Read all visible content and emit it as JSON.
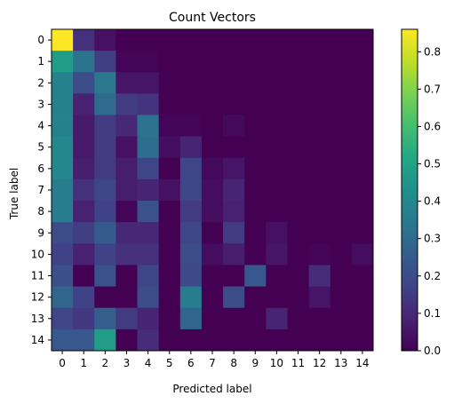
{
  "chart_data": {
    "type": "heatmap",
    "title": "Count Vectors",
    "xlabel": "Predicted label",
    "ylabel": "True label",
    "x_categories": [
      "0",
      "1",
      "2",
      "3",
      "4",
      "5",
      "6",
      "7",
      "8",
      "9",
      "10",
      "11",
      "12",
      "13",
      "14"
    ],
    "y_categories": [
      "0",
      "1",
      "2",
      "3",
      "4",
      "5",
      "6",
      "7",
      "8",
      "9",
      "10",
      "11",
      "12",
      "13",
      "14"
    ],
    "colormap": "viridis",
    "vmin": 0.0,
    "vmax": 0.86,
    "colorbar_ticks": [
      "0.0",
      "0.1",
      "0.2",
      "0.3",
      "0.4",
      "0.5",
      "0.6",
      "0.7",
      "0.8"
    ],
    "colorbar_tick_values": [
      0.0,
      0.1,
      0.2,
      0.3,
      0.4,
      0.5,
      0.6,
      0.7,
      0.8
    ],
    "values": [
      [
        0.86,
        0.12,
        0.04,
        0.0,
        0.0,
        0.0,
        0.0,
        0.0,
        0.0,
        0.0,
        0.0,
        0.0,
        0.0,
        0.0,
        0.0
      ],
      [
        0.48,
        0.33,
        0.16,
        0.01,
        0.01,
        0.0,
        0.0,
        0.0,
        0.0,
        0.0,
        0.0,
        0.0,
        0.0,
        0.0,
        0.0
      ],
      [
        0.38,
        0.2,
        0.34,
        0.05,
        0.05,
        0.0,
        0.0,
        0.0,
        0.0,
        0.0,
        0.0,
        0.0,
        0.0,
        0.0,
        0.0
      ],
      [
        0.38,
        0.08,
        0.3,
        0.15,
        0.13,
        0.0,
        0.0,
        0.0,
        0.0,
        0.0,
        0.0,
        0.0,
        0.0,
        0.0,
        0.0
      ],
      [
        0.38,
        0.06,
        0.15,
        0.1,
        0.32,
        0.01,
        0.01,
        0.0,
        0.02,
        0.0,
        0.0,
        0.0,
        0.0,
        0.0,
        0.0
      ],
      [
        0.4,
        0.06,
        0.15,
        0.04,
        0.31,
        0.03,
        0.09,
        0.0,
        0.0,
        0.0,
        0.0,
        0.0,
        0.0,
        0.0,
        0.0
      ],
      [
        0.4,
        0.07,
        0.15,
        0.07,
        0.18,
        0.0,
        0.18,
        0.02,
        0.05,
        0.0,
        0.0,
        0.0,
        0.0,
        0.0,
        0.0
      ],
      [
        0.36,
        0.12,
        0.18,
        0.07,
        0.09,
        0.04,
        0.18,
        0.03,
        0.09,
        0.0,
        0.0,
        0.0,
        0.0,
        0.0,
        0.0
      ],
      [
        0.36,
        0.08,
        0.17,
        0.01,
        0.22,
        0.0,
        0.15,
        0.03,
        0.08,
        0.0,
        0.0,
        0.0,
        0.0,
        0.0,
        0.0
      ],
      [
        0.2,
        0.16,
        0.25,
        0.1,
        0.1,
        0.0,
        0.18,
        0.0,
        0.15,
        0.0,
        0.04,
        0.0,
        0.0,
        0.0,
        0.0
      ],
      [
        0.17,
        0.08,
        0.17,
        0.12,
        0.12,
        0.0,
        0.2,
        0.03,
        0.07,
        0.0,
        0.05,
        0.0,
        0.01,
        0.0,
        0.03
      ],
      [
        0.21,
        0.0,
        0.22,
        0.0,
        0.18,
        0.0,
        0.19,
        0.0,
        0.0,
        0.24,
        0.0,
        0.0,
        0.11,
        0.0,
        0.0
      ],
      [
        0.28,
        0.17,
        0.0,
        0.0,
        0.2,
        0.0,
        0.36,
        0.0,
        0.2,
        0.0,
        0.0,
        0.0,
        0.05,
        0.0,
        0.0
      ],
      [
        0.18,
        0.14,
        0.26,
        0.15,
        0.09,
        0.0,
        0.28,
        0.0,
        0.0,
        0.0,
        0.09,
        0.0,
        0.0,
        0.0,
        0.0
      ],
      [
        0.24,
        0.24,
        0.48,
        0.0,
        0.11,
        0.0,
        0.0,
        0.0,
        0.0,
        0.0,
        0.0,
        0.0,
        0.0,
        0.0,
        0.0
      ]
    ]
  }
}
